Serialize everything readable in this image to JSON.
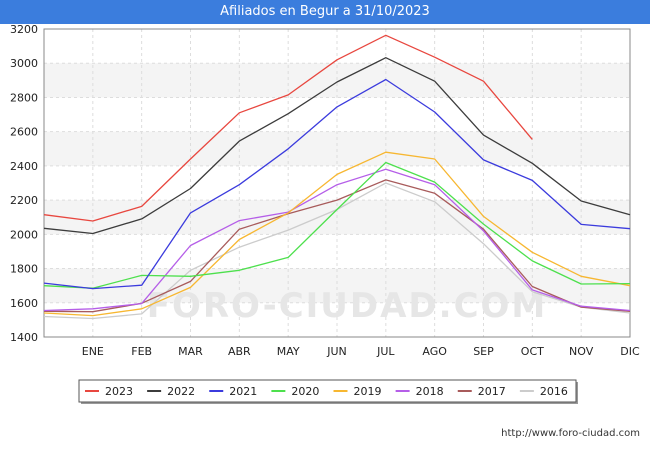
{
  "chart_data": {
    "type": "line",
    "title": "Afiliados en Begur a 31/10/2023",
    "categories": [
      "",
      "ENE",
      "FEB",
      "MAR",
      "ABR",
      "MAY",
      "JUN",
      "JUL",
      "AGO",
      "SEP",
      "OCT",
      "NOV",
      "DIC"
    ],
    "ylim": [
      1400,
      3200
    ],
    "yticks": [
      1400,
      1600,
      1800,
      2000,
      2200,
      2400,
      2600,
      2800,
      3000,
      3200
    ],
    "grid": true,
    "legend_position": "bottom",
    "watermark": "FORO-CIUDAD.COM",
    "series": [
      {
        "name": "2023",
        "color": "#e8473f",
        "values": [
          2115,
          2078,
          2163,
          2440,
          2710,
          2815,
          3020,
          3163,
          3035,
          2895,
          2555,
          null,
          null
        ]
      },
      {
        "name": "2022",
        "color": "#3c3c3c",
        "values": [
          2035,
          2005,
          2090,
          2268,
          2545,
          2705,
          2890,
          3032,
          2895,
          2580,
          2415,
          2195,
          2115
        ]
      },
      {
        "name": "2021",
        "color": "#3b3bdd",
        "values": [
          1715,
          1683,
          1703,
          2125,
          2290,
          2500,
          2745,
          2905,
          2715,
          2435,
          2315,
          2058,
          2033
        ]
      },
      {
        "name": "2020",
        "color": "#4de04d",
        "values": [
          1700,
          1685,
          1760,
          1755,
          1790,
          1865,
          2145,
          2420,
          2305,
          2060,
          1845,
          1710,
          1712
        ]
      },
      {
        "name": "2019",
        "color": "#f7b731",
        "values": [
          1540,
          1525,
          1565,
          1690,
          1970,
          2125,
          2350,
          2480,
          2440,
          2105,
          1895,
          1755,
          1700
        ]
      },
      {
        "name": "2018",
        "color": "#b55ee8",
        "values": [
          1555,
          1565,
          1595,
          1935,
          2080,
          2130,
          2290,
          2380,
          2290,
          2020,
          1675,
          1580,
          1555
        ]
      },
      {
        "name": "2017",
        "color": "#a85b5b",
        "values": [
          1550,
          1548,
          1597,
          1725,
          2030,
          2120,
          2200,
          2318,
          2240,
          2030,
          1695,
          1575,
          1550
        ]
      },
      {
        "name": "2016",
        "color": "#cccccc",
        "values": [
          1520,
          1508,
          1535,
          1790,
          1925,
          2025,
          2145,
          2300,
          2190,
          1945,
          1665,
          1575,
          1540
        ]
      }
    ]
  },
  "footer": {
    "url": "http://www.foro-ciudad.com"
  }
}
